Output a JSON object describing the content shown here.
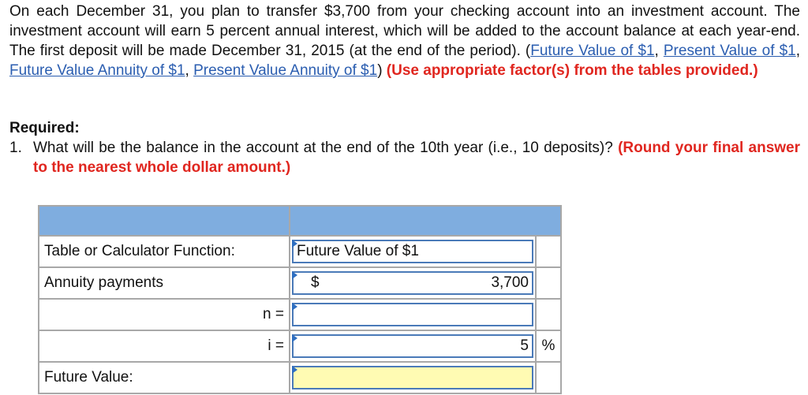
{
  "problem": {
    "text1": "On each December 31, you plan to transfer $3,700 from your checking account into an investment account. The investment account will earn 5 percent annual interest, which will be added to the account balance at each year-end. The first deposit will be made December 31, 2015 (at the end of the period). (",
    "links": [
      "Future Value of $1",
      "Present Value of $1",
      "Future Value Annuity of $1",
      "Present Value Annuity of $1"
    ],
    "instruction": "(Use appropriate factor(s) from the tables provided.)"
  },
  "required": {
    "heading": "Required:",
    "number": "1.",
    "question": "What will be the balance in the account at the end of the 10th year (i.e., 10 deposits)?",
    "hint": "(Round your final answer to the nearest whole dollar amount.)"
  },
  "table": {
    "row1": {
      "label": "Table or Calculator Function:",
      "value": "Future Value of $1"
    },
    "row2": {
      "label": "Annuity payments",
      "currency": "$",
      "value": "3,700"
    },
    "row3": {
      "label": "n =",
      "value": ""
    },
    "row4": {
      "label": "i =",
      "value": "5",
      "unit": "%"
    },
    "row5": {
      "label": "Future Value:",
      "value": ""
    }
  },
  "colors": {
    "header": "#7faddf",
    "link": "#2a5db0",
    "emphasis": "#e0261f",
    "answer_bg": "#fffbb3"
  }
}
